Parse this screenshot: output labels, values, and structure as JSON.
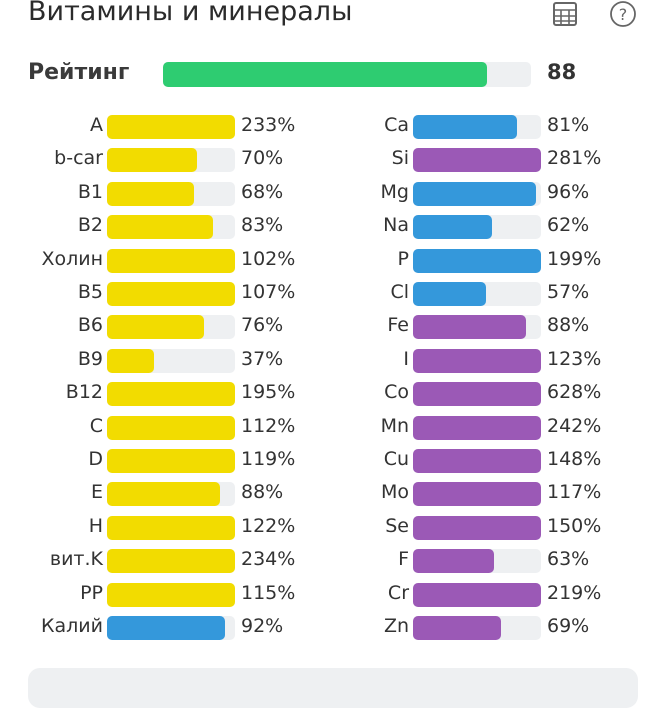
{
  "header": {
    "title": "Витамины и минералы",
    "icons": [
      "table-icon",
      "help-icon"
    ]
  },
  "rating": {
    "label": "Рейтинг",
    "value": "88",
    "fraction": 0.88
  },
  "colors": {
    "vitamin": "#f2dc00",
    "mineral_blue": "#3498db",
    "mineral_purple": "#9b59b6",
    "rating": "#2ecc71",
    "track": "#eef0f2"
  },
  "left": [
    {
      "name": "A",
      "pct": "233%",
      "v": 233,
      "c": "y"
    },
    {
      "name": "b-car",
      "pct": "70%",
      "v": 70,
      "c": "y"
    },
    {
      "name": "B1",
      "pct": "68%",
      "v": 68,
      "c": "y"
    },
    {
      "name": "B2",
      "pct": "83%",
      "v": 83,
      "c": "y"
    },
    {
      "name": "Холин",
      "pct": "102%",
      "v": 102,
      "c": "y"
    },
    {
      "name": "B5",
      "pct": "107%",
      "v": 107,
      "c": "y"
    },
    {
      "name": "B6",
      "pct": "76%",
      "v": 76,
      "c": "y"
    },
    {
      "name": "B9",
      "pct": "37%",
      "v": 37,
      "c": "y"
    },
    {
      "name": "B12",
      "pct": "195%",
      "v": 195,
      "c": "y"
    },
    {
      "name": "C",
      "pct": "112%",
      "v": 112,
      "c": "y"
    },
    {
      "name": "D",
      "pct": "119%",
      "v": 119,
      "c": "y"
    },
    {
      "name": "E",
      "pct": "88%",
      "v": 88,
      "c": "y"
    },
    {
      "name": "H",
      "pct": "122%",
      "v": 122,
      "c": "y"
    },
    {
      "name": "вит.K",
      "pct": "234%",
      "v": 234,
      "c": "y"
    },
    {
      "name": "PP",
      "pct": "115%",
      "v": 115,
      "c": "y"
    },
    {
      "name": "Калий",
      "pct": "92%",
      "v": 92,
      "c": "b"
    }
  ],
  "right": [
    {
      "name": "Ca",
      "pct": "81%",
      "v": 81,
      "c": "b"
    },
    {
      "name": "Si",
      "pct": "281%",
      "v": 281,
      "c": "p"
    },
    {
      "name": "Mg",
      "pct": "96%",
      "v": 96,
      "c": "b"
    },
    {
      "name": "Na",
      "pct": "62%",
      "v": 62,
      "c": "b"
    },
    {
      "name": "P",
      "pct": "199%",
      "v": 199,
      "c": "b"
    },
    {
      "name": "Cl",
      "pct": "57%",
      "v": 57,
      "c": "b"
    },
    {
      "name": "Fe",
      "pct": "88%",
      "v": 88,
      "c": "p"
    },
    {
      "name": "I",
      "pct": "123%",
      "v": 123,
      "c": "p"
    },
    {
      "name": "Co",
      "pct": "628%",
      "v": 628,
      "c": "p"
    },
    {
      "name": "Mn",
      "pct": "242%",
      "v": 242,
      "c": "p"
    },
    {
      "name": "Cu",
      "pct": "148%",
      "v": 148,
      "c": "p"
    },
    {
      "name": "Mo",
      "pct": "117%",
      "v": 117,
      "c": "p"
    },
    {
      "name": "Se",
      "pct": "150%",
      "v": 150,
      "c": "p"
    },
    {
      "name": "F",
      "pct": "63%",
      "v": 63,
      "c": "p"
    },
    {
      "name": "Cr",
      "pct": "219%",
      "v": 219,
      "c": "p"
    },
    {
      "name": "Zn",
      "pct": "69%",
      "v": 69,
      "c": "p"
    }
  ]
}
